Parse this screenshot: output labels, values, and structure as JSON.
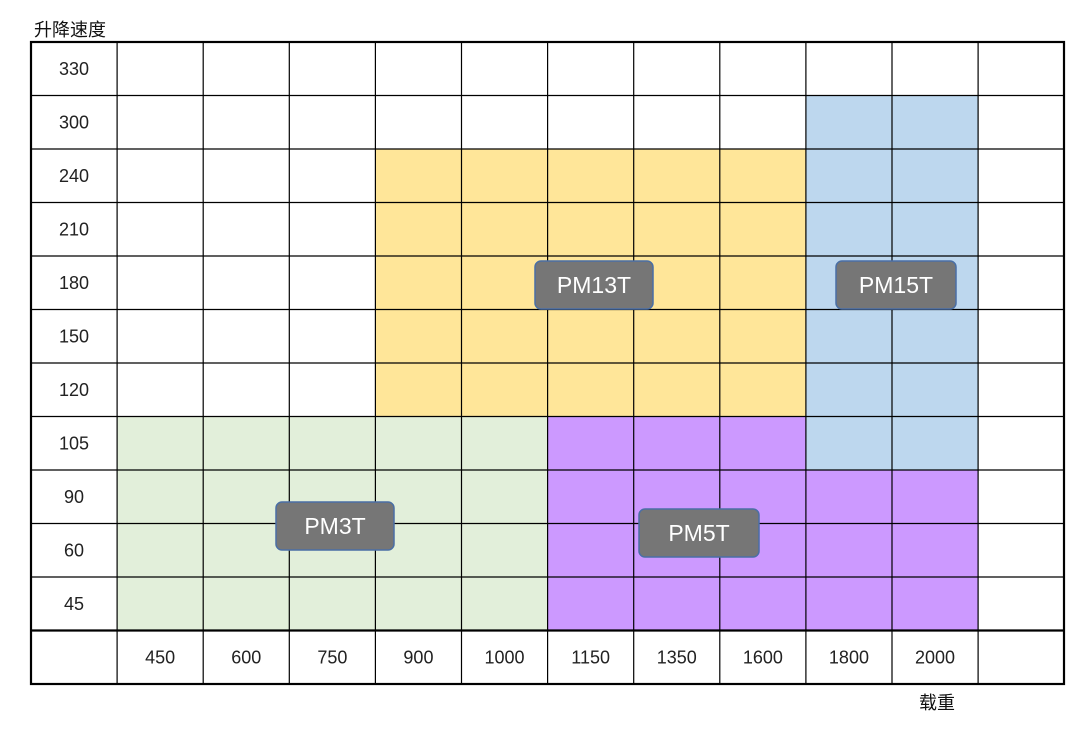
{
  "chart_data": {
    "type": "table",
    "y_axis_title": "升降速度",
    "x_axis_title": "载重",
    "y_ticks": [
      "330",
      "300",
      "240",
      "210",
      "180",
      "150",
      "120",
      "105",
      "90",
      "60",
      "45"
    ],
    "x_ticks": [
      "450",
      "600",
      "750",
      "900",
      "1000",
      "1150",
      "1350",
      "1600",
      "1800",
      "2000",
      ""
    ],
    "regions": [
      {
        "name": "PM3T",
        "color": "#e2efda",
        "x_from": "450",
        "x_to": "1000",
        "y_from": "45",
        "y_to": "105"
      },
      {
        "name": "PM5T",
        "color": "#cc99ff",
        "x_from": "1150",
        "x_to": "2000",
        "y_from": "45",
        "y_to": "90"
      },
      {
        "name": "PM5T",
        "color": "#cc99ff",
        "x_from": "1150",
        "x_to": "1600",
        "y_from": "105",
        "y_to": "105"
      },
      {
        "name": "PM13T",
        "color": "#ffe699",
        "x_from": "900",
        "x_to": "1600",
        "y_from": "120",
        "y_to": "240"
      },
      {
        "name": "PM15T",
        "color": "#bdd7ee",
        "x_from": "1800",
        "x_to": "2000",
        "y_from": "105",
        "y_to": "300"
      }
    ],
    "labels": [
      {
        "text": "PM13T",
        "x": "1350",
        "y": "180"
      },
      {
        "text": "PM15T",
        "x": "2000",
        "y": "180"
      },
      {
        "text": "PM3T",
        "x": "750",
        "y": "90"
      },
      {
        "text": "PM5T",
        "x": "1350",
        "y": "60"
      }
    ],
    "colors": {
      "grid": "#000000",
      "label_box": "#767676",
      "label_border": "#4a6fa5"
    }
  }
}
